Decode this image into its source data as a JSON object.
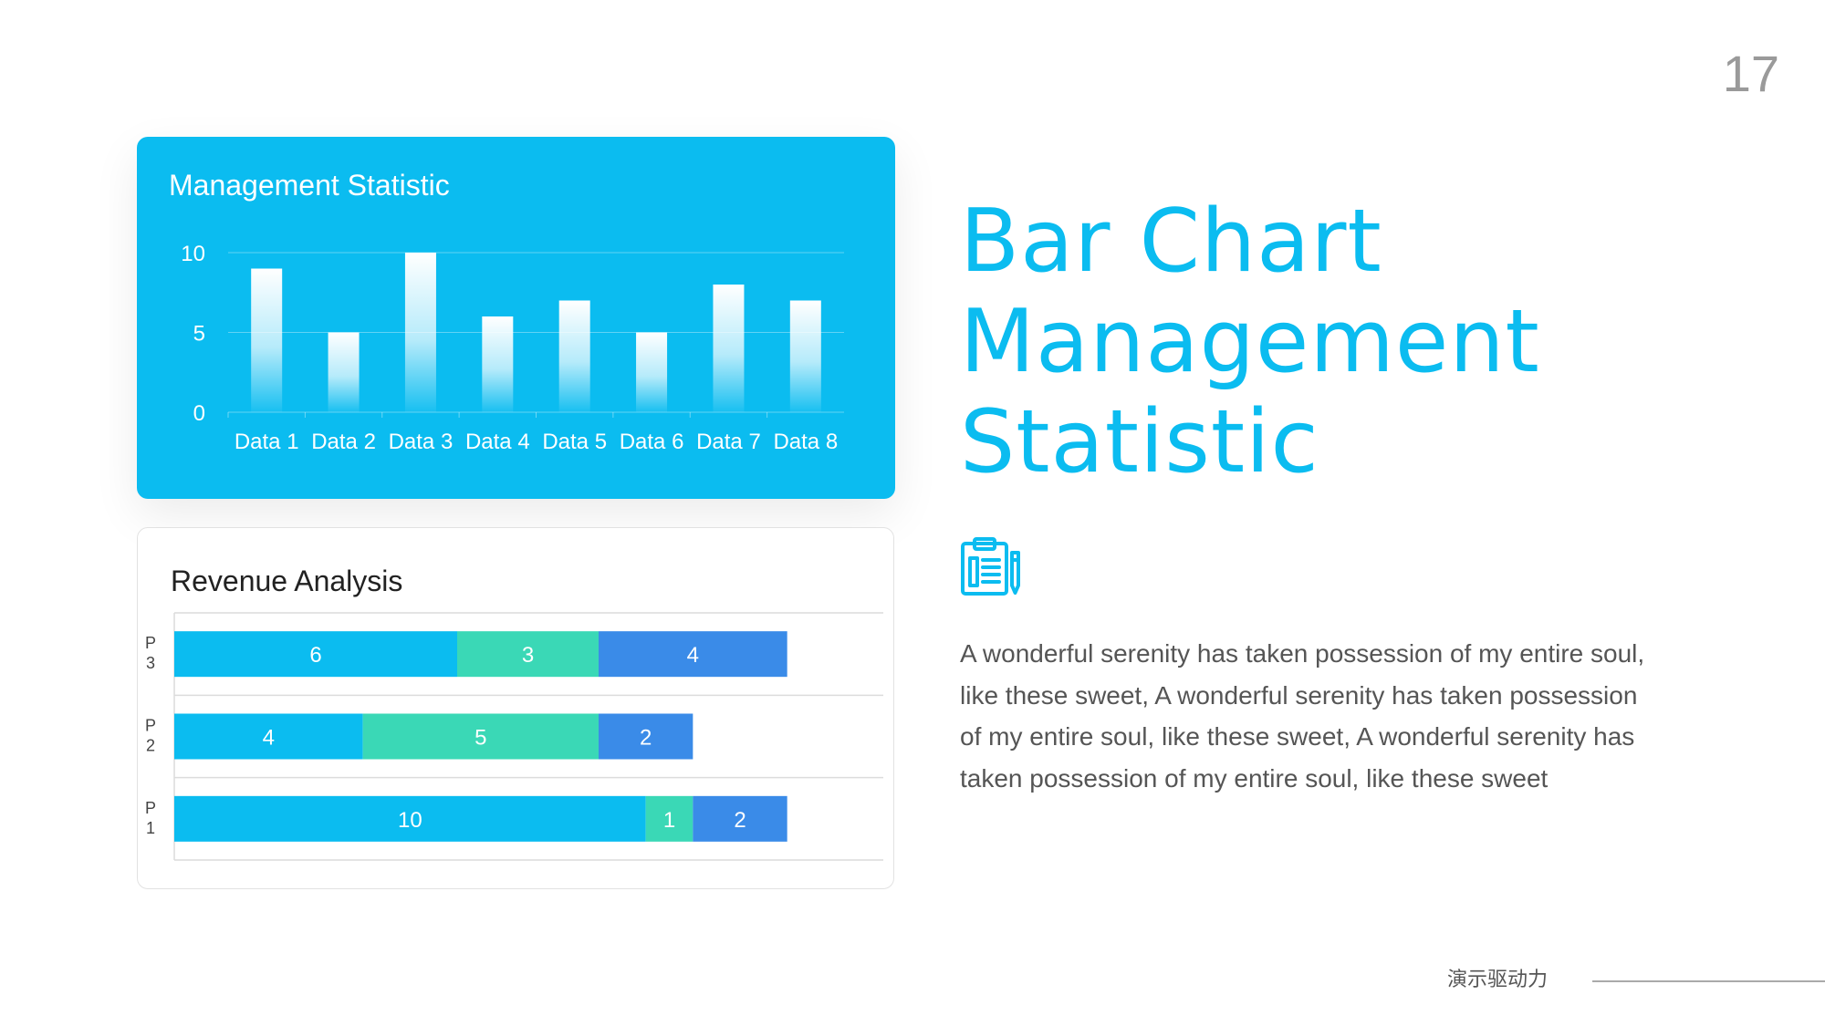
{
  "page_number": "17",
  "heading": {
    "line1": "Bar Chart",
    "line2": "Management",
    "line3": "Statistic"
  },
  "body_text": "A wonderful serenity has taken possession of my entire soul, like these sweet, A wonderful serenity has taken possession of my entire soul, like these sweet, A wonderful serenity has taken possession of my entire soul, like these sweet",
  "footer": {
    "label": "演示驱动力"
  },
  "icons": {
    "clipboard": "clipboard-pencil-icon"
  },
  "colors": {
    "accent": "#0bbcf0",
    "teal": "#3ad8b6",
    "blue": "#3a8be8",
    "text": "#555555"
  },
  "chart_data": [
    {
      "type": "bar",
      "title": "Management Statistic",
      "categories": [
        "Data 1",
        "Data 2",
        "Data 3",
        "Data 4",
        "Data 5",
        "Data 6",
        "Data 7",
        "Data 8"
      ],
      "values": [
        9,
        5,
        10,
        6,
        7,
        5,
        8,
        7
      ],
      "ylim": [
        0,
        10
      ],
      "yticks": [
        "0",
        "5",
        "10"
      ],
      "grid": true,
      "xlabel": "",
      "ylabel": ""
    },
    {
      "type": "bar",
      "orientation": "horizontal",
      "stacked": true,
      "title": "Revenue Analysis",
      "categories": [
        "P 1",
        "P 2",
        "P 3"
      ],
      "series": [
        {
          "values": [
            10,
            4,
            6
          ],
          "color": "#0bbcf0"
        },
        {
          "values": [
            1,
            5,
            3
          ],
          "color": "#3ad8b6"
        },
        {
          "values": [
            2,
            2,
            4
          ],
          "color": "#3a8be8"
        }
      ],
      "xlim": [
        0,
        15
      ],
      "grid": true,
      "xlabel": "",
      "ylabel": ""
    }
  ]
}
